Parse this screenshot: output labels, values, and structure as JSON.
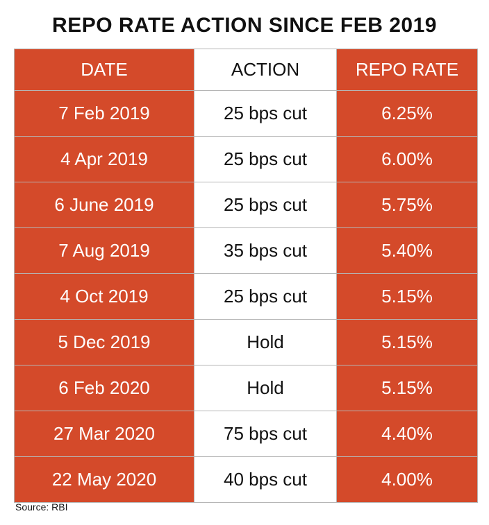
{
  "chart_data": {
    "type": "table",
    "title": "REPO RATE ACTION SINCE FEB 2019",
    "columns": [
      "DATE",
      "ACTION",
      "REPO RATE"
    ],
    "rows": [
      [
        "7 Feb 2019",
        "25 bps cut",
        "6.25%"
      ],
      [
        "4 Apr 2019",
        "25 bps cut",
        "6.00%"
      ],
      [
        "6 June 2019",
        "25 bps cut",
        "5.75%"
      ],
      [
        "7 Aug 2019",
        "35 bps cut",
        "5.40%"
      ],
      [
        "4 Oct 2019",
        "25 bps cut",
        "5.15%"
      ],
      [
        "5 Dec 2019",
        "Hold",
        "5.15%"
      ],
      [
        "6 Feb 2020",
        "Hold",
        "5.15%"
      ],
      [
        "27 Mar 2020",
        "75 bps cut",
        "4.40%"
      ],
      [
        "22 May 2020",
        "40 bps cut",
        "4.00%"
      ]
    ],
    "source": "Source: RBI"
  },
  "colors": {
    "accent": "#d44a2a",
    "text": "#111111",
    "border": "#b5b5b5"
  }
}
